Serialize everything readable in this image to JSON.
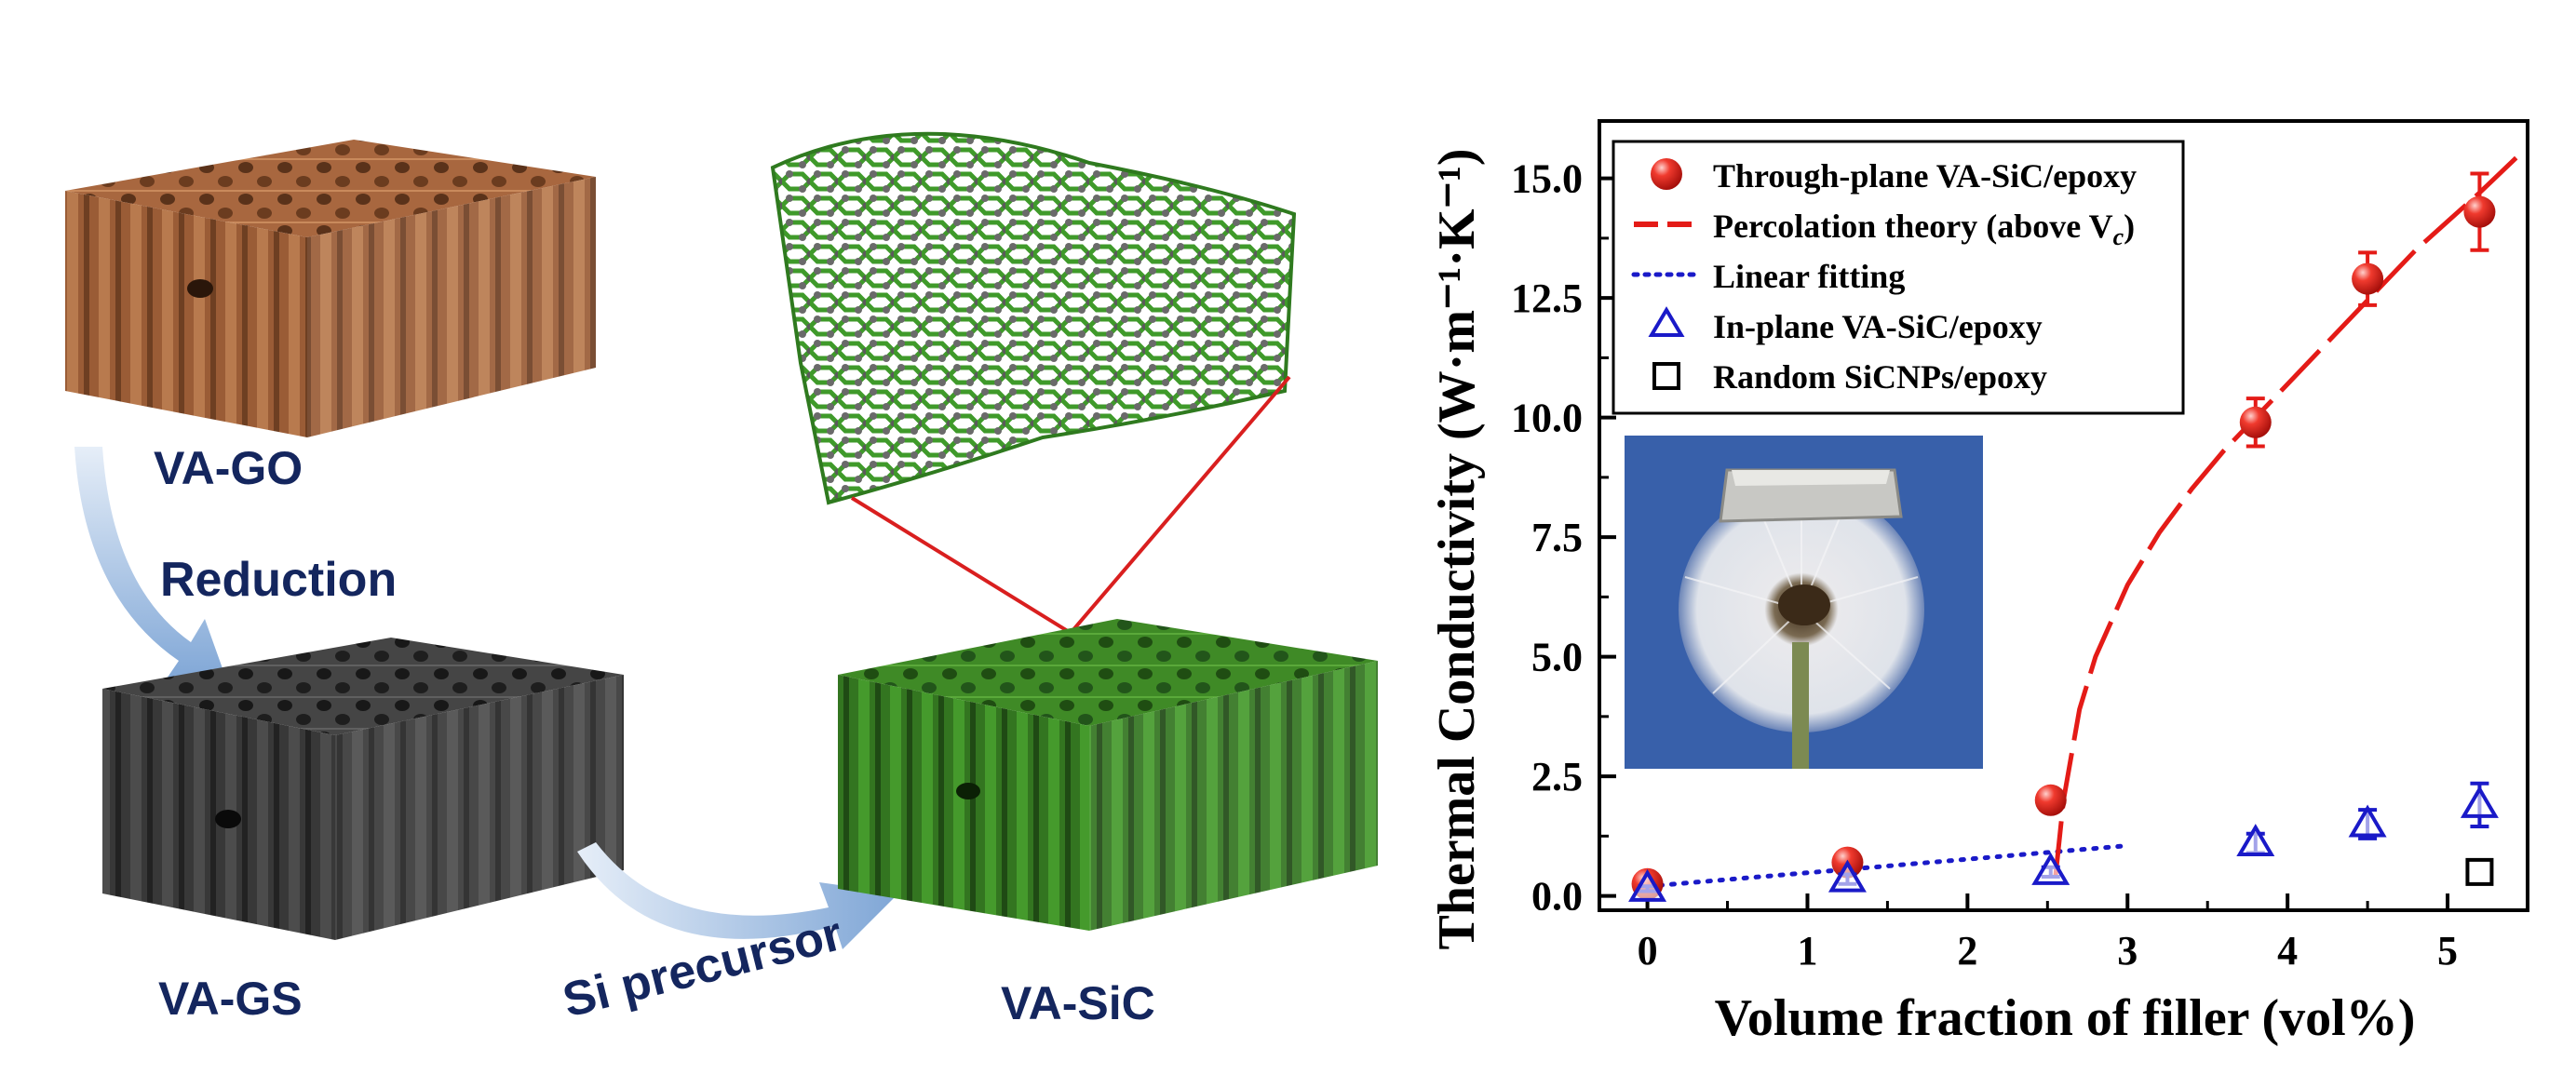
{
  "schematic": {
    "label_go": "VA-GO",
    "label_reduction": "Reduction",
    "label_gs": "VA-GS",
    "label_precursor": "Si precursor",
    "label_sic": "VA-SiC",
    "colors": {
      "go": "#a8673f",
      "gs": "#3a3a3a",
      "sic": "#3f8a26",
      "arrow": "#9ab9dc",
      "zoom_line": "#d91f1f",
      "label": "#14265e"
    }
  },
  "chart_data": {
    "type": "scatter",
    "xlabel": "Volume fraction of filler (vol%)",
    "ylabel": "Thermal Conductivity (W·m⁻¹·K⁻¹)",
    "xlim": [
      -0.3,
      5.5
    ],
    "ylim": [
      -0.3,
      16.2
    ],
    "xticks": [
      "0",
      "1",
      "2",
      "3",
      "4",
      "5"
    ],
    "yticks": [
      "0.0",
      "2.5",
      "5.0",
      "7.5",
      "10.0",
      "12.5",
      "15.0"
    ],
    "legend_position": "top-left",
    "legend": [
      {
        "label": "Through-plane VA-SiC/epoxy",
        "marker": "red-sphere"
      },
      {
        "label": "Percolation theory (above V",
        "sub": "c",
        "tail": ")",
        "marker": "red-dash-line"
      },
      {
        "label": "Linear fitting",
        "marker": "blue-dot-line"
      },
      {
        "label": "In-plane VA-SiC/epoxy",
        "marker": "blue-open-triangle"
      },
      {
        "label": "Random SiCNPs/epoxy",
        "marker": "black-open-square"
      }
    ],
    "series": [
      {
        "name": "Through-plane VA-SiC/epoxy",
        "color": "#e41b17",
        "x": [
          0,
          1.25,
          2.52,
          3.8,
          4.5,
          5.2
        ],
        "y": [
          0.25,
          0.7,
          2.0,
          9.9,
          12.9,
          14.3
        ],
        "err": [
          0.1,
          0.15,
          0.2,
          0.5,
          0.55,
          0.8
        ]
      },
      {
        "name": "In-plane VA-SiC/epoxy",
        "color": "#1a1ac8",
        "x": [
          0,
          1.25,
          2.52,
          3.8,
          4.5,
          5.2
        ],
        "y": [
          0.15,
          0.35,
          0.5,
          1.1,
          1.5,
          1.9
        ],
        "err": [
          0.05,
          0.1,
          0.1,
          0.2,
          0.3,
          0.45
        ]
      },
      {
        "name": "Random SiCNPs/epoxy",
        "color": "#000000",
        "x": [
          5.2
        ],
        "y": [
          0.5
        ],
        "err": [
          0.1
        ]
      }
    ],
    "percolation_fit": {
      "x": [
        2.55,
        2.6,
        2.7,
        2.8,
        3.0,
        3.2,
        3.4,
        3.6,
        3.8,
        4.0,
        4.2,
        4.4,
        4.6,
        4.8,
        5.0,
        5.2,
        5.45
      ],
      "y": [
        0.4,
        2.0,
        3.9,
        5.0,
        6.5,
        7.6,
        8.5,
        9.3,
        10.0,
        10.7,
        11.4,
        12.1,
        12.8,
        13.5,
        14.1,
        14.7,
        15.5
      ]
    },
    "linear_fit": {
      "x": [
        0,
        3.0
      ],
      "y": [
        0.2,
        1.05
      ]
    },
    "photo_colors": {
      "background": "#3d66b0",
      "flower": "#e8e8ea",
      "stem": "#7c8a52",
      "block": "#c8c8c4"
    }
  }
}
